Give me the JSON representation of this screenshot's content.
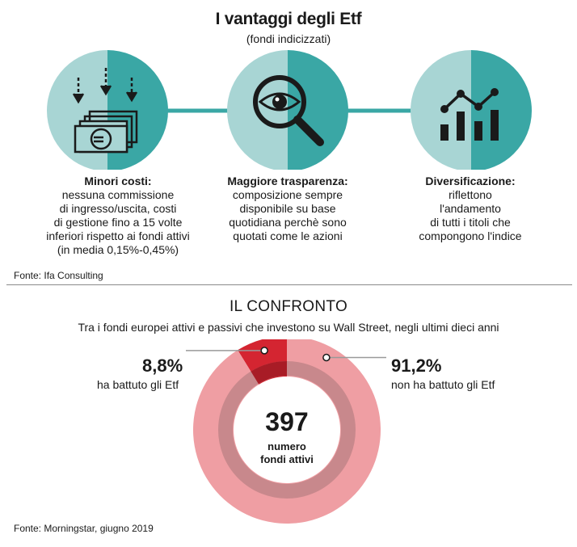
{
  "header": {
    "title": "I vantaggi degli Etf",
    "subtitle": "(fondi indicizzati)"
  },
  "advantages": [
    {
      "icon": "euro-banknotes-icon",
      "heading": "Minori costi:",
      "lines": [
        "nessuna commissione",
        "di ingresso/uscita, costi",
        "di gestione fino a 15 volte",
        "inferiori rispetto ai fondi attivi",
        "(in media 0,15%-0,45%)"
      ]
    },
    {
      "icon": "eye-magnifier-icon",
      "heading": "Maggiore trasparenza:",
      "lines": [
        "composizione sempre",
        "disponibile su base",
        "quotidiana perchè sono",
        "quotati come le azioni"
      ]
    },
    {
      "icon": "bar-line-chart-icon",
      "heading": "Diversificazione:",
      "lines": [
        "riflettono",
        "l'andamento",
        "di tutti i titoli che",
        "compongono l'indice"
      ]
    }
  ],
  "source_top": "Fonte: Ifa Consulting",
  "comparison": {
    "title": "IL CONFRONTO",
    "subtitle": "Tra i fondi europei attivi e passivi che investono su Wall Street, negli ultimi dieci anni",
    "center_value": "397",
    "center_label_1": "numero",
    "center_label_2": "fondi attivi"
  },
  "chart_data": {
    "type": "pie",
    "title": "IL CONFRONTO",
    "total": 397,
    "series": [
      {
        "name": "ha battuto gli Etf",
        "value": 8.8,
        "label": "8,8%",
        "color": "#d42531"
      },
      {
        "name": "non ha battuto gli Etf",
        "value": 91.2,
        "label": "91,2%",
        "color": "#ef9ea3"
      }
    ]
  },
  "source_bottom": "Fonte: Morningstar, giugno 2019",
  "colors": {
    "teal_light": "#a8d5d4",
    "teal_dark": "#3aa7a5",
    "icon_ink": "#1a1a1a",
    "red": "#d42531",
    "pink": "#ef9ea3",
    "inner_ring": "#c8888c"
  }
}
